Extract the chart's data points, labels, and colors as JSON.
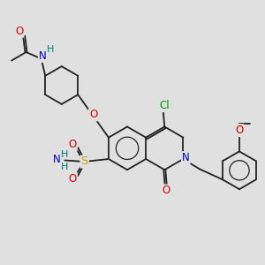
{
  "bg_color": "#e0e0e0",
  "bond_color": "#222222",
  "bond_width": 1.3,
  "atom_colors": {
    "O": "#dd0000",
    "N": "#0000cc",
    "S": "#bbaa00",
    "Cl": "#009900",
    "H_label": "#007777",
    "C": "#222222"
  },
  "font_size": 8.5,
  "font_size_small": 7.0,
  "figsize": [
    3.0,
    3.0
  ],
  "dpi": 100,
  "xlim": [
    0,
    10
  ],
  "ylim": [
    0,
    10
  ]
}
